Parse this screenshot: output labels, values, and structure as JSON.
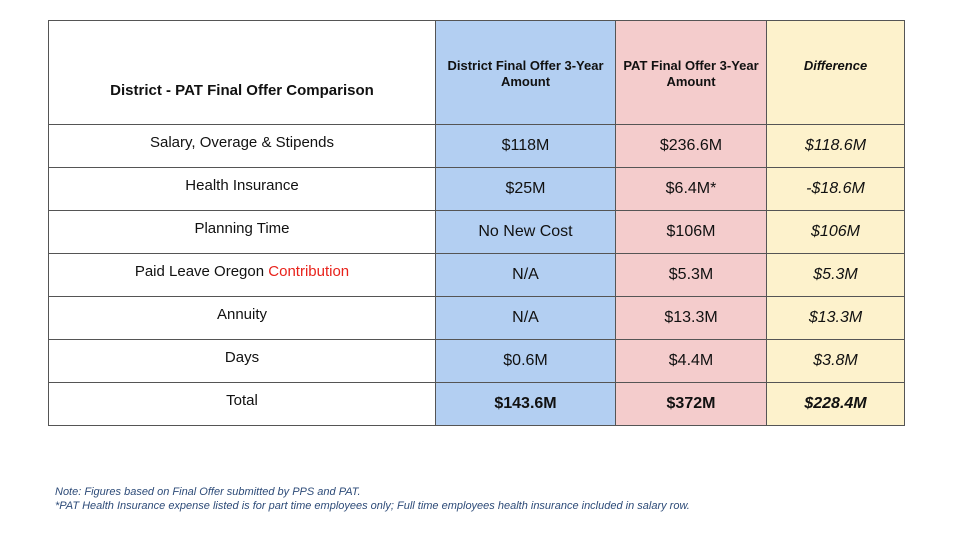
{
  "table": {
    "title": "District - PAT Final Offer Comparison",
    "headers": {
      "district": "District Final Offer 3-Year Amount",
      "pat": "PAT Final Offer 3-Year Amount",
      "difference": "Difference"
    },
    "rows": [
      {
        "label": "Salary, Overage & Stipends",
        "label_highlight": "",
        "district": "$118M",
        "pat": "$236.6M",
        "difference": "$118.6M"
      },
      {
        "label": "Health Insurance",
        "label_highlight": "",
        "district": "$25M",
        "pat": "$6.4M*",
        "difference": "-$18.6M"
      },
      {
        "label": "Planning Time",
        "label_highlight": "",
        "district": "No New Cost",
        "pat": "$106M",
        "difference": "$106M"
      },
      {
        "label": "Paid Leave Oregon ",
        "label_highlight": "Contribution",
        "district": "N/A",
        "pat": "$5.3M",
        "difference": "$5.3M"
      },
      {
        "label": "Annuity",
        "label_highlight": "",
        "district": "N/A",
        "pat": "$13.3M",
        "difference": "$13.3M"
      },
      {
        "label": "Days",
        "label_highlight": "",
        "district": "$0.6M",
        "pat": "$4.4M",
        "difference": "$3.8M"
      }
    ],
    "total": {
      "label": "Total",
      "district": "$143.6M",
      "pat": "$372M",
      "difference": "$228.4M"
    }
  },
  "notes": {
    "line1": "Note: Figures based on Final Offer submitted by PPS and PAT.",
    "line2": "*PAT Health Insurance expense listed is for part time employees only; Full time employees health insurance included in salary row."
  },
  "colors": {
    "district_column": "#b3cff2",
    "pat_column": "#f4cccc",
    "difference_column": "#fdf2cc",
    "highlight_text": "#e8221b",
    "note_text": "#2d4b78"
  }
}
